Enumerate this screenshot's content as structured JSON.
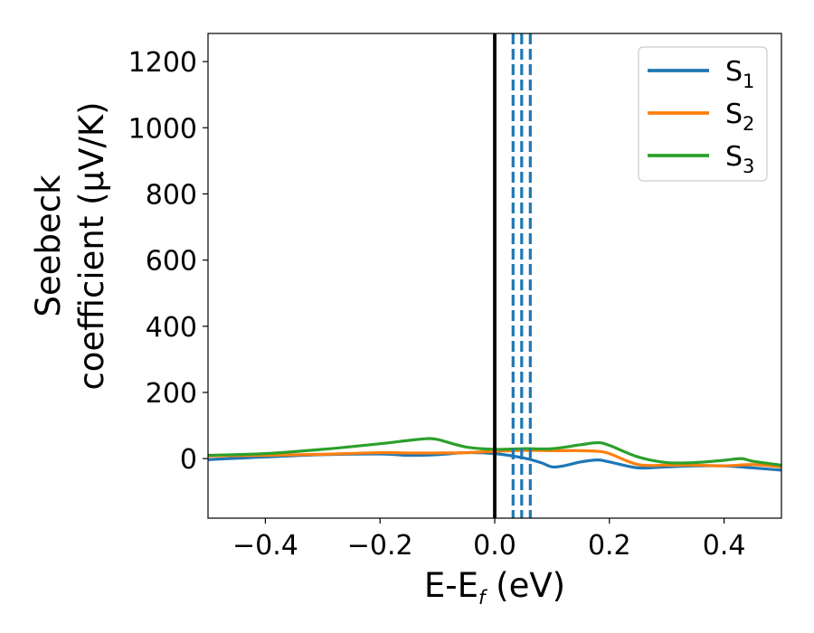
{
  "chart_data": {
    "type": "line",
    "xlabel": "E-E",
    "xlabel_sub": "f",
    "xlabel_unit": " (eV)",
    "ylabel_line1": "Seebeck",
    "ylabel_line2": "coefficient  (μV/K)",
    "xlim": [
      -0.5,
      0.5
    ],
    "ylim": [
      -180,
      1285
    ],
    "xticks": [
      -0.4,
      -0.2,
      0.0,
      0.2,
      0.4
    ],
    "xtick_labels": [
      "−0.4",
      "−0.2",
      "0.0",
      "0.2",
      "0.4"
    ],
    "yticks": [
      0,
      200,
      400,
      600,
      800,
      1000,
      1200
    ],
    "ytick_labels": [
      "0",
      "200",
      "400",
      "600",
      "800",
      "1000",
      "1200"
    ],
    "grid": false,
    "legend_position": "top-right",
    "fermi_line": {
      "x": 0.0,
      "color": "#000000"
    },
    "dashed_lines": {
      "x": [
        0.032,
        0.047,
        0.062
      ],
      "color": "#1f77b4"
    },
    "series": [
      {
        "name": "S",
        "subscript": "1",
        "color": "#1f77b4",
        "x": [
          -0.5,
          -0.4,
          -0.3,
          -0.2,
          -0.15,
          -0.1,
          -0.05,
          0.0,
          0.05,
          0.08,
          0.1,
          0.12,
          0.15,
          0.18,
          0.2,
          0.25,
          0.3,
          0.35,
          0.4,
          0.45,
          0.5
        ],
        "y": [
          -3,
          5,
          12,
          14,
          10,
          12,
          18,
          15,
          2,
          -12,
          -25,
          -22,
          -10,
          -4,
          -10,
          -28,
          -25,
          -22,
          -22,
          -28,
          -35
        ]
      },
      {
        "name": "S",
        "subscript": "2",
        "color": "#ff7f0e",
        "x": [
          -0.5,
          -0.4,
          -0.3,
          -0.2,
          -0.15,
          -0.1,
          -0.05,
          0.0,
          0.05,
          0.1,
          0.15,
          0.18,
          0.2,
          0.25,
          0.3,
          0.35,
          0.4,
          0.45,
          0.5
        ],
        "y": [
          8,
          10,
          13,
          18,
          17,
          17,
          18,
          22,
          25,
          24,
          24,
          22,
          15,
          -18,
          -20,
          -20,
          -22,
          -18,
          -25
        ]
      },
      {
        "name": "S",
        "subscript": "3",
        "color": "#2ca02c",
        "x": [
          -0.5,
          -0.4,
          -0.3,
          -0.2,
          -0.15,
          -0.12,
          -0.1,
          -0.05,
          0.0,
          0.05,
          0.1,
          0.15,
          0.18,
          0.2,
          0.25,
          0.3,
          0.35,
          0.4,
          0.43,
          0.45,
          0.5
        ],
        "y": [
          10,
          15,
          28,
          45,
          55,
          60,
          58,
          35,
          28,
          30,
          30,
          42,
          48,
          40,
          5,
          -12,
          -12,
          -5,
          0,
          -8,
          -20
        ]
      }
    ]
  }
}
